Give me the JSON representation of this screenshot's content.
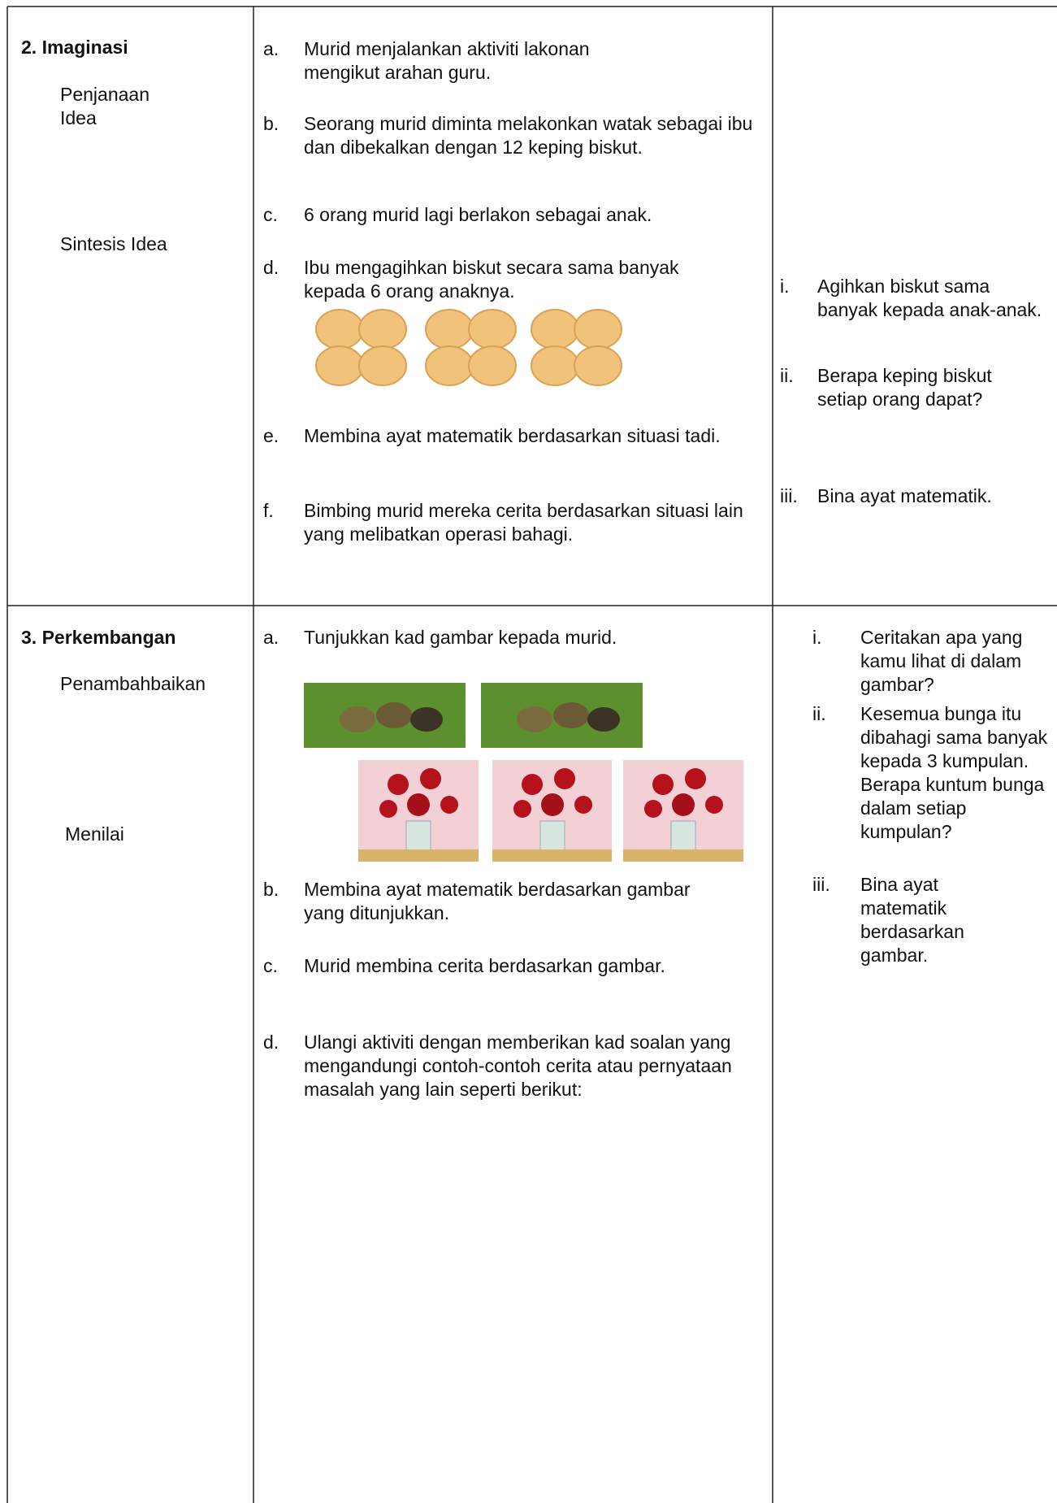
{
  "rows": [
    {
      "title": "2.  Imaginasi",
      "labels": [
        "Penjanaan Idea",
        "Sintesis Idea"
      ],
      "activities": [
        {
          "marker": "a.",
          "text": "Murid menjalankan aktiviti lakonan mengikut arahan guru."
        },
        {
          "marker": "b.",
          "text": "Seorang murid diminta melakonkan watak sebagai ibu dan dibekalkan dengan 12 keping biskut."
        },
        {
          "marker": "c.",
          "text": "6 orang murid lagi berlakon sebagai anak."
        },
        {
          "marker": "d.",
          "text": "Ibu mengagihkan biskut secara sama banyak kepada 6 orang anaknya."
        },
        {
          "marker": "e.",
          "text": "Membina ayat matematik berdasarkan situasi tadi."
        },
        {
          "marker": "f.",
          "text": "Bimbing murid mereka cerita berdasarkan situasi lain yang melibatkan operasi bahagi."
        }
      ],
      "questions": [
        {
          "marker": "i.",
          "text": "Agihkan biskut sama banyak kepada anak-anak."
        },
        {
          "marker": "ii.",
          "text": "Berapa keping biskut setiap orang dapat?"
        },
        {
          "marker": "iii.",
          "text": "Bina ayat matematik."
        }
      ]
    },
    {
      "title": "3. Perkembangan",
      "labels": [
        "Penambahbaikan",
        "Menilai"
      ],
      "activities": [
        {
          "marker": "a.",
          "text": "Tunjukkan kad gambar kepada murid."
        },
        {
          "marker": "b.",
          "text": "Membina ayat matematik berdasarkan gambar yang ditunjukkan."
        },
        {
          "marker": "c.",
          "text": "Murid membina cerita berdasarkan gambar."
        },
        {
          "marker": "d.",
          "text": "Ulangi aktiviti dengan memberikan kad soalan yang mengandungi contoh-contoh cerita atau pernyataan masalah yang lain seperti berikut:"
        }
      ],
      "questions": [
        {
          "marker": "i.",
          "text": "Ceritakan apa yang kamu lihat di dalam gambar?"
        },
        {
          "marker": "ii.",
          "text": "Kesemua bunga itu dibahagi sama banyak kepada 3 kumpulan. Berapa kuntum bunga dalam setiap kumpulan?"
        },
        {
          "marker": "iii.",
          "text": "Bina ayat matematik berdasarkan gambar."
        }
      ]
    }
  ]
}
